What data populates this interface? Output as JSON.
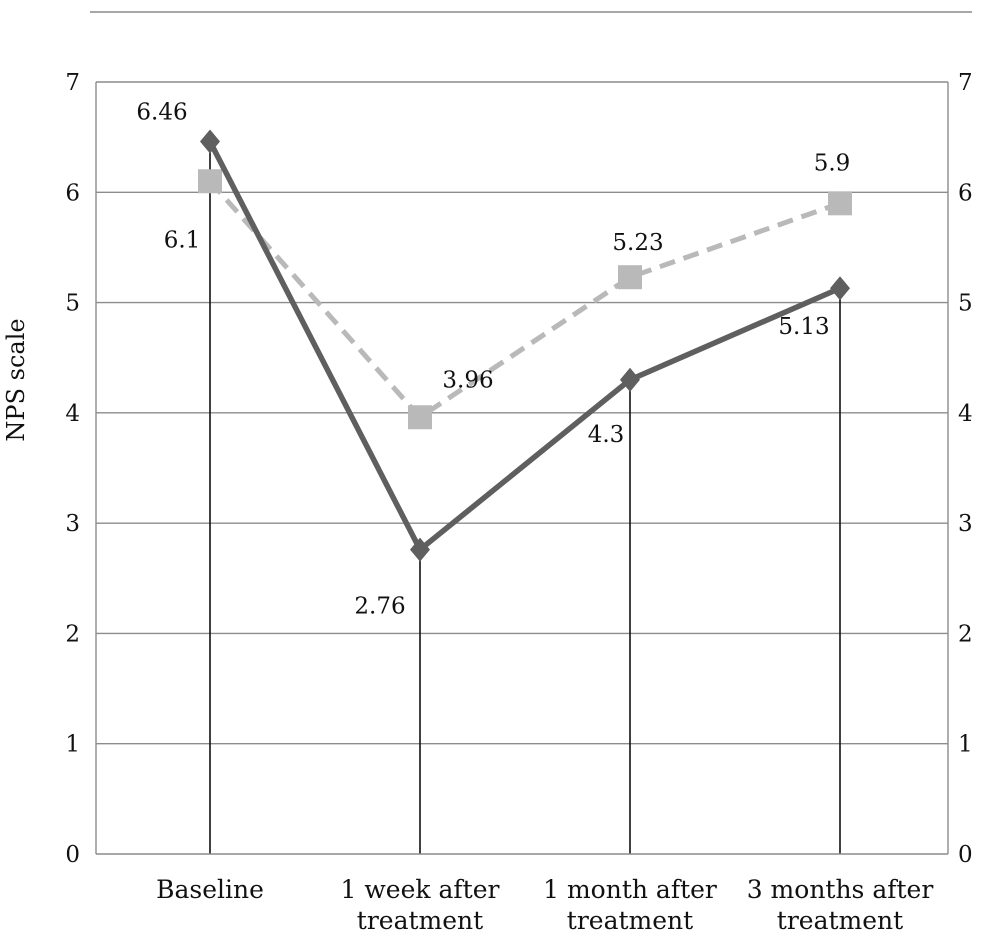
{
  "chart_data": {
    "type": "line",
    "title": "",
    "xlabel": "",
    "ylabel": "NPS scale",
    "ylim": [
      0,
      7
    ],
    "y_ticks": [
      0,
      1,
      2,
      3,
      4,
      5,
      6,
      7
    ],
    "y_tick_labels": [
      "0",
      "1",
      "2",
      "3",
      "4",
      "5",
      "6",
      "7"
    ],
    "right_y_tick_labels": [
      "0",
      "1",
      "2",
      "3",
      "4",
      "5",
      "6",
      "7"
    ],
    "grid": true,
    "legend": "none",
    "categories": [
      [
        "Baseline"
      ],
      [
        "1 week after",
        "treatment"
      ],
      [
        "1 month after",
        "treatment"
      ],
      [
        "3 months after",
        "treatment"
      ]
    ],
    "series": [
      {
        "values": [
          6.46,
          2.76,
          4.3,
          5.13
        ],
        "labels": [
          "6.46",
          "2.76",
          "4.3",
          "5.13"
        ],
        "color": "#5f5f5f",
        "line_style": "solid",
        "marker": "diamond"
      },
      {
        "values": [
          6.1,
          3.96,
          5.23,
          5.9
        ],
        "labels": [
          "6.1",
          "3.96",
          "5.23",
          "5.9"
        ],
        "color": "#b9b9b9",
        "line_style": "dashed",
        "marker": "square"
      }
    ]
  }
}
